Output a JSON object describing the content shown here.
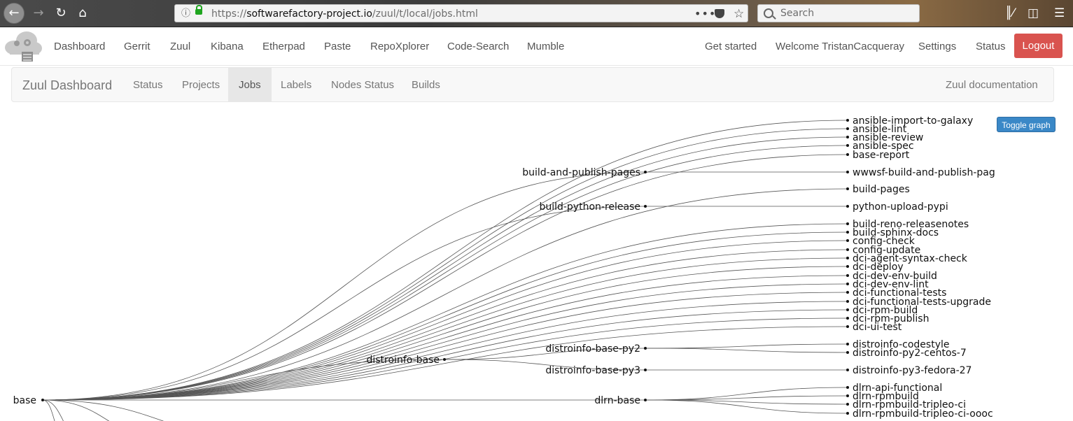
{
  "browser": {
    "url_prefix": "https://",
    "url_domain": "softwarefactory-project.io",
    "url_path": "/zuul/t/local/jobs.html",
    "search_placeholder": "Search",
    "icons": [
      "back-icon",
      "forward-icon",
      "reload-icon",
      "home-icon",
      "info-icon",
      "lock-icon",
      "page-actions-icon",
      "pocket-icon",
      "bookmark-star-icon",
      "search-icon",
      "library-icon",
      "sidebar-icon",
      "menu-icon"
    ]
  },
  "sf_nav": {
    "items": [
      "Dashboard",
      "Gerrit",
      "Zuul",
      "Kibana",
      "Etherpad",
      "Paste",
      "RepoXplorer",
      "Code-Search",
      "Mumble"
    ],
    "right_items": [
      "Get started",
      "Welcome TristanCacqueray",
      "Settings",
      "Status"
    ],
    "logout": "Logout",
    "logout_color": "#d9534f"
  },
  "zuul_nav": {
    "brand": "Zuul Dashboard",
    "tabs": [
      "Status",
      "Projects",
      "Jobs",
      "Labels",
      "Nodes Status",
      "Builds"
    ],
    "active_tab": "Jobs",
    "docs": "Zuul documentation"
  },
  "toggle_graph": "Toggle graph",
  "graph": {
    "root": "base",
    "parents": [
      "build-and-publish-pages",
      "build-python-release",
      "distroinfo-base",
      "distroinfo-base-py2",
      "distroinfo-base-py3",
      "dlrn-base"
    ],
    "leaves": [
      "ansible-import-to-galaxy",
      "ansible-lint",
      "ansible-review",
      "ansible-spec",
      "base-report",
      "wwwsf-build-and-publish-pag",
      "build-pages",
      "python-upload-pypi",
      "build-reno-releasenotes",
      "build-sphinx-docs",
      "config-check",
      "config-update",
      "dci-agent-syntax-check",
      "dci-deploy",
      "dci-dev-env-build",
      "dci-dev-env-lint",
      "dci-functional-tests",
      "dci-functional-tests-upgrade",
      "dci-rpm-build",
      "dci-rpm-publish",
      "dci-ui-test",
      "distroinfo-codestyle",
      "distroinfo-py2-centos-7",
      "distroinfo-py3-fedora-27",
      "dlrn-api-functional",
      "dlrn-rpmbuild",
      "dlrn-rpmbuild-tripleo-ci",
      "dlrn-rpmbuild-tripleo-ci-oooc"
    ],
    "edges": [
      [
        "base",
        "ansible-import-to-galaxy"
      ],
      [
        "base",
        "ansible-lint"
      ],
      [
        "base",
        "ansible-review"
      ],
      [
        "base",
        "ansible-spec"
      ],
      [
        "base",
        "base-report"
      ],
      [
        "base",
        "build-and-publish-pages"
      ],
      [
        "build-and-publish-pages",
        "wwwsf-build-and-publish-pag"
      ],
      [
        "base",
        "build-pages"
      ],
      [
        "base",
        "build-python-release"
      ],
      [
        "build-python-release",
        "python-upload-pypi"
      ],
      [
        "base",
        "build-reno-releasenotes"
      ],
      [
        "base",
        "build-sphinx-docs"
      ],
      [
        "base",
        "config-check"
      ],
      [
        "base",
        "config-update"
      ],
      [
        "base",
        "dci-agent-syntax-check"
      ],
      [
        "base",
        "dci-deploy"
      ],
      [
        "base",
        "dci-dev-env-build"
      ],
      [
        "base",
        "dci-dev-env-lint"
      ],
      [
        "base",
        "dci-functional-tests"
      ],
      [
        "base",
        "dci-functional-tests-upgrade"
      ],
      [
        "base",
        "dci-rpm-build"
      ],
      [
        "base",
        "dci-rpm-publish"
      ],
      [
        "base",
        "dci-ui-test"
      ],
      [
        "base",
        "distroinfo-base"
      ],
      [
        "distroinfo-base",
        "distroinfo-base-py2"
      ],
      [
        "distroinfo-base",
        "distroinfo-base-py3"
      ],
      [
        "distroinfo-base-py2",
        "distroinfo-codestyle"
      ],
      [
        "distroinfo-base-py2",
        "distroinfo-py2-centos-7"
      ],
      [
        "distroinfo-base-py3",
        "distroinfo-py3-fedora-27"
      ],
      [
        "base",
        "dlrn-base"
      ],
      [
        "dlrn-base",
        "dlrn-api-functional"
      ],
      [
        "dlrn-base",
        "dlrn-rpmbuild"
      ],
      [
        "dlrn-base",
        "dlrn-rpmbuild-tripleo-ci"
      ],
      [
        "dlrn-base",
        "dlrn-rpmbuild-tripleo-ci-oooc"
      ]
    ]
  }
}
